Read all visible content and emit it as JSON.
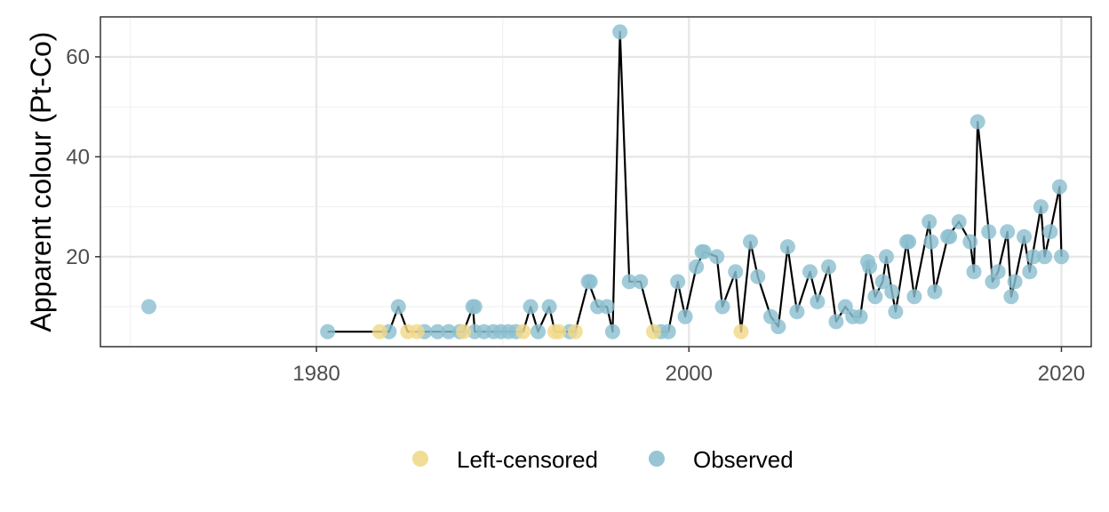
{
  "colors": {
    "left_censored": "#f0d98a",
    "observed": "#8cbfcf",
    "line": "#000000",
    "grid_major": "#e6e6e6",
    "grid_minor": "#f2f2f2",
    "panel_border": "#333333"
  },
  "chart_data": {
    "type": "scatter",
    "title": "",
    "xlabel": "",
    "ylabel": "Apparent colour (Pt-Co)",
    "xlim": [
      1968.4,
      2021.6
    ],
    "ylim": [
      2.0,
      68.0
    ],
    "x_ticks": [
      1980,
      2000,
      2020
    ],
    "x_tick_labels": [
      "1980",
      "2000",
      "2020"
    ],
    "y_ticks": [
      20,
      40,
      60
    ],
    "y_tick_labels": [
      "20",
      "40",
      "60"
    ],
    "grid": true,
    "legend_position": "bottom",
    "legend": [
      {
        "key": "left_censored",
        "label": "Left-censored"
      },
      {
        "key": "observed",
        "label": "Observed"
      }
    ],
    "series": [
      {
        "name": "Observed",
        "key": "observed",
        "points": [
          [
            1971.0,
            10
          ],
          [
            1980.6,
            5
          ],
          [
            1983.9,
            5
          ],
          [
            1984.4,
            10
          ],
          [
            1985.8,
            5
          ],
          [
            1986.5,
            5
          ],
          [
            1987.1,
            5
          ],
          [
            1987.7,
            5
          ],
          [
            1988.4,
            10
          ],
          [
            1988.5,
            10
          ],
          [
            1988.5,
            5
          ],
          [
            1989.0,
            5
          ],
          [
            1989.5,
            5
          ],
          [
            1989.9,
            5
          ],
          [
            1990.3,
            5
          ],
          [
            1990.7,
            5
          ],
          [
            1991.5,
            10
          ],
          [
            1991.9,
            5
          ],
          [
            1992.5,
            10
          ],
          [
            1993.6,
            5
          ],
          [
            1994.6,
            15
          ],
          [
            1994.7,
            15
          ],
          [
            1995.1,
            10
          ],
          [
            1995.6,
            10
          ],
          [
            1995.9,
            5
          ],
          [
            1996.3,
            65
          ],
          [
            1996.8,
            15
          ],
          [
            1997.4,
            15
          ],
          [
            1998.5,
            5
          ],
          [
            1998.9,
            5
          ],
          [
            1999.4,
            15
          ],
          [
            1999.8,
            8
          ],
          [
            2000.4,
            18
          ],
          [
            2000.7,
            21
          ],
          [
            2000.8,
            21
          ],
          [
            2001.5,
            20
          ],
          [
            2001.8,
            10
          ],
          [
            2002.5,
            17
          ],
          [
            2003.3,
            23
          ],
          [
            2003.7,
            16
          ],
          [
            2004.4,
            8
          ],
          [
            2004.8,
            6
          ],
          [
            2005.3,
            22
          ],
          [
            2005.8,
            9
          ],
          [
            2006.5,
            17
          ],
          [
            2006.9,
            11
          ],
          [
            2007.5,
            18
          ],
          [
            2007.9,
            7
          ],
          [
            2008.4,
            10
          ],
          [
            2008.8,
            8
          ],
          [
            2009.2,
            8
          ],
          [
            2009.6,
            19
          ],
          [
            2009.7,
            18
          ],
          [
            2010.0,
            12
          ],
          [
            2010.4,
            15
          ],
          [
            2010.6,
            20
          ],
          [
            2010.9,
            13
          ],
          [
            2011.1,
            9
          ],
          [
            2011.7,
            23
          ],
          [
            2011.8,
            23
          ],
          [
            2012.1,
            12
          ],
          [
            2012.9,
            27
          ],
          [
            2013.0,
            23
          ],
          [
            2013.2,
            13
          ],
          [
            2013.9,
            24
          ],
          [
            2014.0,
            24
          ],
          [
            2014.5,
            27
          ],
          [
            2015.1,
            23
          ],
          [
            2015.3,
            17
          ],
          [
            2015.5,
            47
          ],
          [
            2016.1,
            25
          ],
          [
            2016.3,
            15
          ],
          [
            2016.6,
            17
          ],
          [
            2017.1,
            25
          ],
          [
            2017.3,
            12
          ],
          [
            2017.5,
            15
          ],
          [
            2018.0,
            24
          ],
          [
            2018.3,
            17
          ],
          [
            2018.5,
            20
          ],
          [
            2018.9,
            30
          ],
          [
            2019.1,
            20
          ],
          [
            2019.4,
            25
          ],
          [
            2019.9,
            34
          ],
          [
            2020.0,
            20
          ]
        ]
      },
      {
        "name": "Left-censored",
        "key": "left_censored",
        "points": [
          [
            1983.4,
            5
          ],
          [
            1984.9,
            5
          ],
          [
            1985.4,
            5
          ],
          [
            1987.9,
            5
          ],
          [
            1991.1,
            5
          ],
          [
            1992.8,
            5
          ],
          [
            1993.0,
            5
          ],
          [
            1993.9,
            5
          ],
          [
            1998.1,
            5
          ],
          [
            2002.8,
            5
          ]
        ]
      }
    ],
    "trend_line": [
      [
        1980.6,
        5
      ],
      [
        1983.9,
        5
      ],
      [
        1984.4,
        10
      ],
      [
        1984.9,
        5
      ],
      [
        1987.9,
        5
      ],
      [
        1988.4,
        10
      ],
      [
        1988.5,
        5
      ],
      [
        1991.1,
        5
      ],
      [
        1991.5,
        10
      ],
      [
        1991.9,
        5
      ],
      [
        1992.5,
        10
      ],
      [
        1992.8,
        5
      ],
      [
        1993.9,
        5
      ],
      [
        1994.6,
        15
      ],
      [
        1995.1,
        10
      ],
      [
        1995.6,
        10
      ],
      [
        1995.9,
        5
      ],
      [
        1996.3,
        65
      ],
      [
        1996.8,
        15
      ],
      [
        1997.4,
        15
      ],
      [
        1998.1,
        5
      ],
      [
        1998.9,
        5
      ],
      [
        1999.4,
        15
      ],
      [
        1999.8,
        8
      ],
      [
        2000.4,
        18
      ],
      [
        2000.8,
        21
      ],
      [
        2001.5,
        20
      ],
      [
        2001.8,
        10
      ],
      [
        2002.5,
        17
      ],
      [
        2002.8,
        5
      ],
      [
        2003.3,
        23
      ],
      [
        2003.7,
        16
      ],
      [
        2004.4,
        8
      ],
      [
        2004.8,
        6
      ],
      [
        2005.3,
        22
      ],
      [
        2005.8,
        9
      ],
      [
        2006.5,
        17
      ],
      [
        2006.9,
        11
      ],
      [
        2007.5,
        18
      ],
      [
        2007.9,
        7
      ],
      [
        2008.4,
        10
      ],
      [
        2008.8,
        8
      ],
      [
        2009.2,
        8
      ],
      [
        2009.6,
        19
      ],
      [
        2010.0,
        12
      ],
      [
        2010.4,
        15
      ],
      [
        2010.6,
        20
      ],
      [
        2010.9,
        13
      ],
      [
        2011.1,
        9
      ],
      [
        2011.7,
        23
      ],
      [
        2012.1,
        12
      ],
      [
        2012.9,
        27
      ],
      [
        2013.2,
        13
      ],
      [
        2013.9,
        24
      ],
      [
        2014.5,
        27
      ],
      [
        2015.1,
        23
      ],
      [
        2015.3,
        17
      ],
      [
        2015.5,
        47
      ],
      [
        2016.1,
        25
      ],
      [
        2016.3,
        15
      ],
      [
        2016.6,
        17
      ],
      [
        2017.1,
        25
      ],
      [
        2017.3,
        12
      ],
      [
        2017.5,
        15
      ],
      [
        2018.0,
        24
      ],
      [
        2018.3,
        17
      ],
      [
        2018.9,
        30
      ],
      [
        2019.1,
        20
      ],
      [
        2019.4,
        25
      ],
      [
        2019.9,
        34
      ],
      [
        2020.0,
        20
      ]
    ]
  }
}
